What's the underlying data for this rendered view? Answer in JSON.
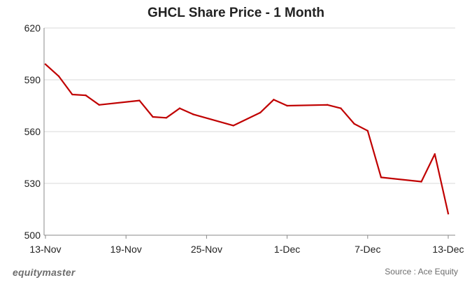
{
  "chart_data": {
    "type": "line",
    "title": "GHCL Share Price - 1 Month",
    "xlabel": "",
    "ylabel": "",
    "ylim": [
      500,
      620
    ],
    "yticks": [
      500,
      530,
      560,
      590,
      620
    ],
    "x_tick_labels": [
      "13-Nov",
      "19-Nov",
      "25-Nov",
      "1-Dec",
      "7-Dec",
      "13-Dec"
    ],
    "x_domain": [
      "13-Nov",
      "13-Dec"
    ],
    "grid": "horizontal",
    "legend": "none",
    "line_color": "#c00000",
    "series": [
      {
        "x": [
          "13-Nov",
          "14-Nov",
          "15-Nov",
          "16-Nov",
          "17-Nov",
          "20-Nov",
          "21-Nov",
          "22-Nov",
          "23-Nov",
          "24-Nov",
          "27-Nov",
          "29-Nov",
          "30-Nov",
          "1-Dec",
          "4-Dec",
          "5-Dec",
          "6-Dec",
          "7-Dec",
          "8-Dec",
          "11-Dec",
          "12-Dec",
          "13-Dec"
        ],
        "values": [
          599,
          592,
          581.5,
          581,
          575.5,
          578,
          568.5,
          568,
          573.5,
          570,
          563.5,
          571,
          578.5,
          575,
          575.5,
          573.5,
          564.5,
          560.5,
          533.5,
          531,
          547,
          512.5
        ]
      }
    ]
  },
  "footer": {
    "brand": "equitymaster",
    "source": "Source : Ace Equity"
  }
}
